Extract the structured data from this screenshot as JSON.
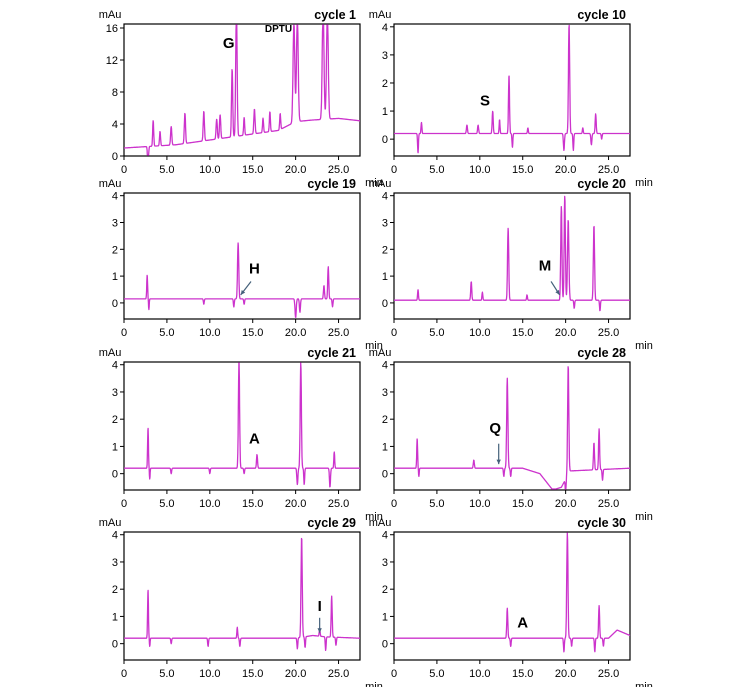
{
  "colors": {
    "trace": "#cc33cc",
    "axis": "#000000"
  },
  "chart_data": [
    {
      "type": "line",
      "title": "cycle 1",
      "ylabel": "mAu",
      "xlabel": "min",
      "xlim": [
        0,
        27.5
      ],
      "ylim": [
        0,
        16.5
      ],
      "xticks": [
        0,
        5,
        10,
        15,
        20,
        25
      ],
      "xticklabels": [
        "0",
        "5.0",
        "10.0",
        "15.0",
        "20.0",
        "25.0"
      ],
      "yticks": [
        0,
        4,
        8,
        12,
        16
      ],
      "yticklabels": [
        "0",
        "4",
        "8",
        "12",
        "16"
      ],
      "baseline": [
        [
          0,
          1.0
        ],
        [
          6,
          1.4
        ],
        [
          10,
          2.0
        ],
        [
          14,
          2.6
        ],
        [
          18,
          3.2
        ],
        [
          20,
          4.3
        ],
        [
          22,
          4.5
        ],
        [
          25,
          4.7
        ],
        [
          27.5,
          4.4
        ]
      ],
      "peaks": [
        [
          2.8,
          -2.5,
          0.06
        ],
        [
          3.4,
          3.2,
          0.06
        ],
        [
          4.2,
          1.8,
          0.06
        ],
        [
          5.5,
          2.3,
          0.07
        ],
        [
          7.1,
          3.8,
          0.07
        ],
        [
          9.3,
          3.7,
          0.07
        ],
        [
          10.8,
          2.5,
          0.07
        ],
        [
          11.2,
          3.0,
          0.07
        ],
        [
          12.6,
          8.5,
          0.07
        ],
        [
          13.1,
          16.5,
          0.08
        ],
        [
          14.0,
          2.2,
          0.06
        ],
        [
          15.2,
          3.1,
          0.07
        ],
        [
          16.2,
          1.8,
          0.06
        ],
        [
          17.0,
          2.5,
          0.06
        ],
        [
          18.2,
          2.0,
          0.06
        ],
        [
          19.8,
          12.5,
          0.1
        ],
        [
          20.2,
          13.0,
          0.1
        ],
        [
          23.2,
          14.0,
          0.1
        ],
        [
          23.7,
          13.5,
          0.1
        ]
      ],
      "annotations": [
        {
          "text": "G",
          "x": 12.2,
          "y": 13.5
        },
        {
          "text": "DPTU",
          "x": 18.0,
          "y": 15.5
        }
      ],
      "arrows": []
    },
    {
      "type": "line",
      "title": "cycle 10",
      "ylabel": "mAu",
      "xlabel": "min",
      "xlim": [
        0,
        27.5
      ],
      "ylim": [
        -0.6,
        4.1
      ],
      "xticks": [
        0,
        5,
        10,
        15,
        20,
        25
      ],
      "xticklabels": [
        "0",
        "5.0",
        "10.0",
        "15.0",
        "20.0",
        "25.0"
      ],
      "yticks": [
        0,
        1,
        2,
        3,
        4
      ],
      "yticklabels": [
        "0",
        "1",
        "2",
        "3",
        "4"
      ],
      "baseline": [
        [
          0,
          0.2
        ],
        [
          27.5,
          0.2
        ]
      ],
      "peaks": [
        [
          2.8,
          -0.7,
          0.05
        ],
        [
          3.2,
          0.4,
          0.05
        ],
        [
          8.5,
          0.3,
          0.06
        ],
        [
          9.8,
          0.3,
          0.06
        ],
        [
          11.5,
          0.8,
          0.06
        ],
        [
          12.3,
          0.5,
          0.05
        ],
        [
          13.4,
          2.1,
          0.06
        ],
        [
          13.8,
          -0.5,
          0.05
        ],
        [
          15.6,
          0.2,
          0.05
        ],
        [
          19.8,
          -0.6,
          0.06
        ],
        [
          20.4,
          3.9,
          0.07
        ],
        [
          20.9,
          -0.6,
          0.05
        ],
        [
          22.0,
          0.2,
          0.05
        ],
        [
          23.0,
          -0.4,
          0.06
        ],
        [
          23.5,
          0.7,
          0.06
        ],
        [
          24.2,
          -0.2,
          0.05
        ]
      ],
      "annotations": [
        {
          "text": "S",
          "x": 10.6,
          "y": 1.2
        }
      ],
      "arrows": []
    },
    {
      "type": "line",
      "title": "cycle 19",
      "ylabel": "mAu",
      "xlabel": "min",
      "xlim": [
        0,
        27.5
      ],
      "ylim": [
        -0.6,
        4.1
      ],
      "xticks": [
        0,
        5,
        10,
        15,
        20,
        25
      ],
      "xticklabels": [
        "0",
        "5.0",
        "10.0",
        "15.0",
        "20.0",
        "25.0"
      ],
      "yticks": [
        0,
        1,
        2,
        3,
        4
      ],
      "yticklabels": [
        "0",
        "1",
        "2",
        "3",
        "4"
      ],
      "baseline": [
        [
          0,
          0.15
        ],
        [
          27.5,
          0.15
        ]
      ],
      "peaks": [
        [
          2.7,
          0.9,
          0.05
        ],
        [
          2.9,
          -0.4,
          0.04
        ],
        [
          9.3,
          -0.2,
          0.05
        ],
        [
          12.8,
          -0.3,
          0.05
        ],
        [
          13.3,
          2.1,
          0.07
        ],
        [
          14.0,
          -0.2,
          0.05
        ],
        [
          20.0,
          -0.7,
          0.07
        ],
        [
          20.5,
          -0.5,
          0.06
        ],
        [
          23.3,
          0.5,
          0.06
        ],
        [
          23.8,
          1.2,
          0.06
        ],
        [
          24.3,
          -0.3,
          0.05
        ]
      ],
      "annotations": [
        {
          "text": "H",
          "x": 15.2,
          "y": 1.1
        }
      ],
      "arrows": [
        {
          "from": [
            14.8,
            0.8
          ],
          "to": [
            13.6,
            0.3
          ]
        }
      ]
    },
    {
      "type": "line",
      "title": "cycle 20",
      "ylabel": "mAu",
      "xlabel": "min",
      "xlim": [
        0,
        27.5
      ],
      "ylim": [
        -0.6,
        4.1
      ],
      "xticks": [
        0,
        5,
        10,
        15,
        20,
        25
      ],
      "xticklabels": [
        "0",
        "5.0",
        "10.0",
        "15.0",
        "20.0",
        "25.0"
      ],
      "yticks": [
        0,
        1,
        2,
        3,
        4
      ],
      "yticklabels": [
        "0",
        "1",
        "2",
        "3",
        "4"
      ],
      "baseline": [
        [
          0,
          0.1
        ],
        [
          27.5,
          0.1
        ]
      ],
      "peaks": [
        [
          2.8,
          0.4,
          0.05
        ],
        [
          9.0,
          0.7,
          0.06
        ],
        [
          10.3,
          0.3,
          0.05
        ],
        [
          13.3,
          2.7,
          0.07
        ],
        [
          15.5,
          0.2,
          0.05
        ],
        [
          19.5,
          3.5,
          0.07
        ],
        [
          19.9,
          3.9,
          0.07
        ],
        [
          20.3,
          3.0,
          0.08
        ],
        [
          21.0,
          -0.3,
          0.05
        ],
        [
          23.3,
          2.8,
          0.07
        ],
        [
          24.0,
          -0.4,
          0.05
        ]
      ],
      "annotations": [
        {
          "text": "M",
          "x": 17.6,
          "y": 1.2
        }
      ],
      "arrows": [
        {
          "from": [
            18.3,
            0.8
          ],
          "to": [
            19.3,
            0.3
          ]
        }
      ]
    },
    {
      "type": "line",
      "title": "cycle 21",
      "ylabel": "mAu",
      "xlabel": "min",
      "xlim": [
        0,
        27.5
      ],
      "ylim": [
        -0.6,
        4.1
      ],
      "xticks": [
        0,
        5,
        10,
        15,
        20,
        25
      ],
      "xticklabels": [
        "0",
        "5.0",
        "10.0",
        "15.0",
        "20.0",
        "25.0"
      ],
      "yticks": [
        0,
        1,
        2,
        3,
        4
      ],
      "yticklabels": [
        "0",
        "1",
        "2",
        "3",
        "4"
      ],
      "baseline": [
        [
          0,
          0.2
        ],
        [
          27.5,
          0.2
        ]
      ],
      "peaks": [
        [
          2.8,
          1.5,
          0.05
        ],
        [
          3.0,
          -0.4,
          0.04
        ],
        [
          5.5,
          -0.2,
          0.05
        ],
        [
          10.0,
          -0.2,
          0.05
        ],
        [
          13.4,
          4.0,
          0.07
        ],
        [
          14.0,
          -0.2,
          0.05
        ],
        [
          15.5,
          0.5,
          0.06
        ],
        [
          20.2,
          -0.6,
          0.06
        ],
        [
          20.6,
          3.9,
          0.07
        ],
        [
          21.0,
          -0.6,
          0.05
        ],
        [
          24.0,
          -0.7,
          0.06
        ],
        [
          24.5,
          0.6,
          0.05
        ]
      ],
      "annotations": [
        {
          "text": "A",
          "x": 15.2,
          "y": 1.1
        }
      ],
      "arrows": []
    },
    {
      "type": "line",
      "title": "cycle 28",
      "ylabel": "mAu",
      "xlabel": "min",
      "xlim": [
        0,
        27.5
      ],
      "ylim": [
        -0.6,
        4.1
      ],
      "xticks": [
        0,
        5,
        10,
        15,
        20,
        25
      ],
      "xticklabels": [
        "0",
        "5.0",
        "10.0",
        "15.0",
        "20.0",
        "25.0"
      ],
      "yticks": [
        0,
        1,
        2,
        3,
        4
      ],
      "yticklabels": [
        "0",
        "1",
        "2",
        "3",
        "4"
      ],
      "baseline": [
        [
          0,
          0.2
        ],
        [
          15,
          0.2
        ],
        [
          17,
          0.0
        ],
        [
          18.5,
          -0.6
        ],
        [
          19.5,
          -0.5
        ],
        [
          20.5,
          0.1
        ],
        [
          27.5,
          0.2
        ]
      ],
      "peaks": [
        [
          2.7,
          1.1,
          0.05
        ],
        [
          2.9,
          -0.3,
          0.04
        ],
        [
          9.3,
          0.3,
          0.06
        ],
        [
          12.8,
          -0.3,
          0.05
        ],
        [
          13.2,
          3.3,
          0.07
        ],
        [
          13.6,
          -0.3,
          0.05
        ],
        [
          20.3,
          4.0,
          0.07
        ],
        [
          20.0,
          -0.5,
          0.05
        ],
        [
          23.3,
          1.0,
          0.06
        ],
        [
          23.9,
          1.5,
          0.06
        ],
        [
          24.3,
          -0.4,
          0.05
        ]
      ],
      "annotations": [
        {
          "text": "Q",
          "x": 11.8,
          "y": 1.5
        }
      ],
      "arrows": [
        {
          "from": [
            12.2,
            1.1
          ],
          "to": [
            12.2,
            0.35
          ]
        }
      ]
    },
    {
      "type": "line",
      "title": "cycle 29",
      "ylabel": "mAu",
      "xlabel": "min",
      "xlim": [
        0,
        27.5
      ],
      "ylim": [
        -0.6,
        4.1
      ],
      "xticks": [
        0,
        5,
        10,
        15,
        20,
        25
      ],
      "xticklabels": [
        "0",
        "5.0",
        "10.0",
        "15.0",
        "20.0",
        "25.0"
      ],
      "yticks": [
        0,
        1,
        2,
        3,
        4
      ],
      "yticklabels": [
        "0",
        "1",
        "2",
        "3",
        "4"
      ],
      "baseline": [
        [
          0,
          0.2
        ],
        [
          20,
          0.2
        ],
        [
          22,
          0.3
        ],
        [
          23.5,
          0.25
        ],
        [
          27.5,
          0.2
        ]
      ],
      "peaks": [
        [
          2.8,
          1.8,
          0.05
        ],
        [
          3.0,
          -0.3,
          0.04
        ],
        [
          5.5,
          -0.2,
          0.05
        ],
        [
          9.8,
          -0.3,
          0.05
        ],
        [
          13.2,
          0.4,
          0.05
        ],
        [
          13.5,
          -0.3,
          0.05
        ],
        [
          20.2,
          -0.4,
          0.05
        ],
        [
          20.7,
          3.7,
          0.07
        ],
        [
          21.1,
          -0.4,
          0.05
        ],
        [
          22.8,
          0.3,
          0.05
        ],
        [
          23.5,
          -0.5,
          0.05
        ],
        [
          24.2,
          1.5,
          0.06
        ],
        [
          24.7,
          -0.3,
          0.05
        ]
      ],
      "annotations": [
        {
          "text": "I",
          "x": 22.8,
          "y": 1.2
        }
      ],
      "arrows": [
        {
          "from": [
            22.8,
            0.95
          ],
          "to": [
            22.8,
            0.4
          ]
        }
      ]
    },
    {
      "type": "line",
      "title": "cycle 30",
      "ylabel": "mAu",
      "xlabel": "min",
      "xlim": [
        0,
        27.5
      ],
      "ylim": [
        -0.6,
        4.1
      ],
      "xticks": [
        0,
        5,
        10,
        15,
        20,
        25
      ],
      "xticklabels": [
        "0",
        "5.0",
        "10.0",
        "15.0",
        "20.0",
        "25.0"
      ],
      "yticks": [
        0,
        1,
        2,
        3,
        4
      ],
      "yticklabels": [
        "0",
        "1",
        "2",
        "3",
        "4"
      ],
      "baseline": [
        [
          0,
          0.2
        ],
        [
          25,
          0.2
        ],
        [
          26,
          0.5
        ],
        [
          27.5,
          0.3
        ]
      ],
      "peaks": [
        [
          13.2,
          1.1,
          0.06
        ],
        [
          13.6,
          -0.3,
          0.05
        ],
        [
          19.8,
          -0.5,
          0.05
        ],
        [
          20.2,
          3.9,
          0.07
        ],
        [
          20.7,
          -0.3,
          0.05
        ],
        [
          23.4,
          -0.5,
          0.05
        ],
        [
          23.9,
          1.2,
          0.06
        ],
        [
          24.4,
          -0.3,
          0.05
        ]
      ],
      "annotations": [
        {
          "text": "A",
          "x": 15.0,
          "y": 0.6
        }
      ],
      "arrows": []
    }
  ]
}
